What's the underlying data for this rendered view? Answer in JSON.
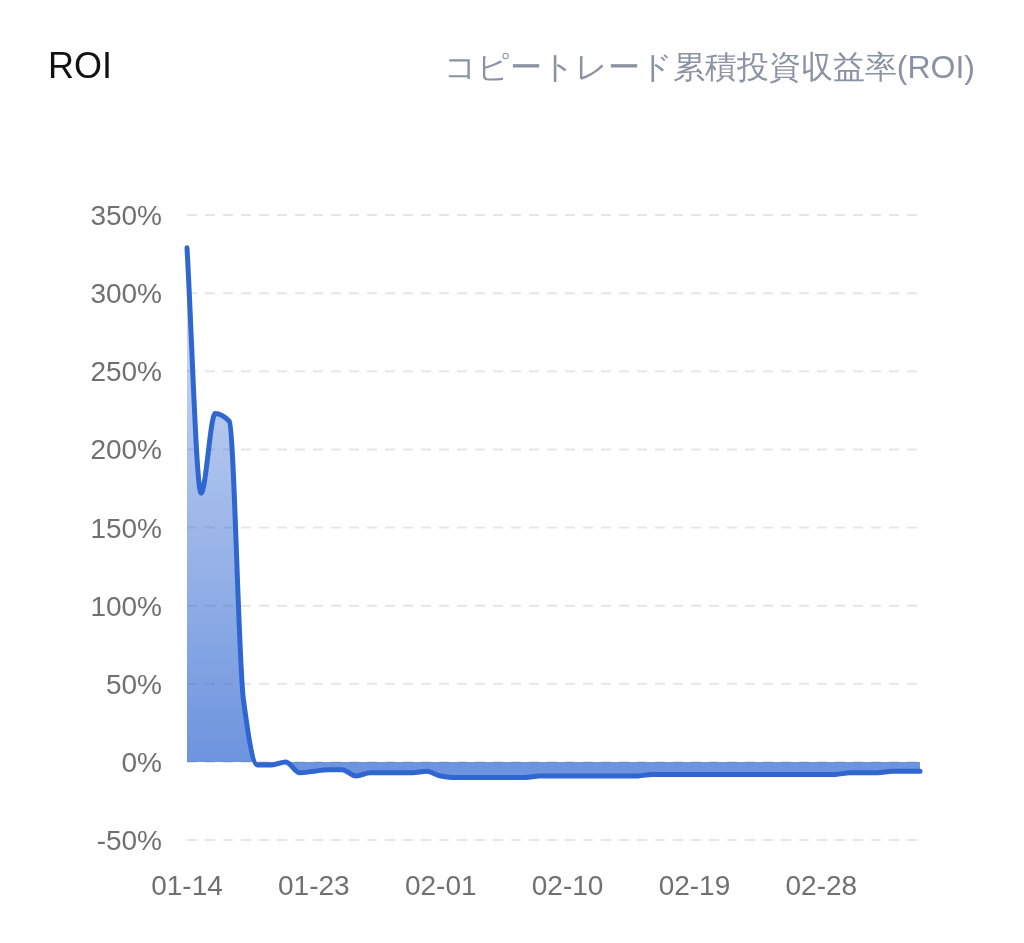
{
  "chart_data": {
    "type": "area",
    "title": "ROI",
    "subtitle": "コピートレード累積投資収益率(ROI)",
    "x": [
      "--01-14",
      "--01-15",
      "--01-16",
      "--01-17",
      "--01-18",
      "--01-19",
      "--01-20",
      "--01-21",
      "--01-22",
      "--01-23",
      "--01-24",
      "--01-25",
      "--01-26",
      "--01-27",
      "--01-28",
      "--01-29",
      "--01-30",
      "--01-31",
      "--02-01",
      "--02-02",
      "--02-03",
      "--02-04",
      "--02-05",
      "--02-06",
      "--02-07",
      "--02-08",
      "--02-09",
      "--02-10",
      "--02-11",
      "--02-12",
      "--02-13",
      "--02-14",
      "--02-15",
      "--02-16",
      "--02-17",
      "--02-18",
      "--02-19",
      "--02-20",
      "--02-21",
      "--02-22",
      "--02-23",
      "--02-24",
      "--02-25",
      "--02-26",
      "--02-27",
      "--02-28",
      "--03-01",
      "--03-02",
      "--03-03",
      "--03-04",
      "--03-05",
      "--03-06",
      "--03-07"
    ],
    "series": [
      {
        "color": "#2f66d0",
        "values": [
          329,
          172,
          223,
          218,
          40,
          -2,
          -2,
          0,
          -7,
          -6,
          -5,
          -5,
          -9,
          -7,
          -7,
          -7,
          -7,
          -6,
          -9,
          -10,
          -10,
          -10,
          -10,
          -10,
          -10,
          -9,
          -9,
          -9,
          -9,
          -9,
          -9,
          -9,
          -9,
          -8,
          -8,
          -8,
          -8,
          -8,
          -8,
          -8,
          -8,
          -8,
          -8,
          -8,
          -8,
          -8,
          -8,
          -7,
          -7,
          -7,
          -6,
          -6,
          -6
        ]
      }
    ],
    "xlim": [
      "--01-14",
      "--03-07"
    ],
    "xticks": [
      {
        "value": "--01-14",
        "label": "01-14"
      },
      {
        "value": "--01-23",
        "label": "01-23"
      },
      {
        "value": "--02-01",
        "label": "02-01"
      },
      {
        "value": "--02-10",
        "label": "02-10"
      },
      {
        "value": "--02-19",
        "label": "02-19"
      },
      {
        "value": "--02-28",
        "label": "02-28"
      }
    ],
    "ylim": [
      -50,
      350
    ],
    "yticks": [
      {
        "value": -50,
        "label": "-50%"
      },
      {
        "value": 0,
        "label": "0%"
      },
      {
        "value": 50,
        "label": "50%"
      },
      {
        "value": 100,
        "label": "100%"
      },
      {
        "value": 150,
        "label": "150%"
      },
      {
        "value": 200,
        "label": "200%"
      },
      {
        "value": 250,
        "label": "250%"
      },
      {
        "value": 300,
        "label": "300%"
      },
      {
        "value": 350,
        "label": "350%"
      }
    ],
    "grid": "y",
    "line_style": "solid"
  }
}
